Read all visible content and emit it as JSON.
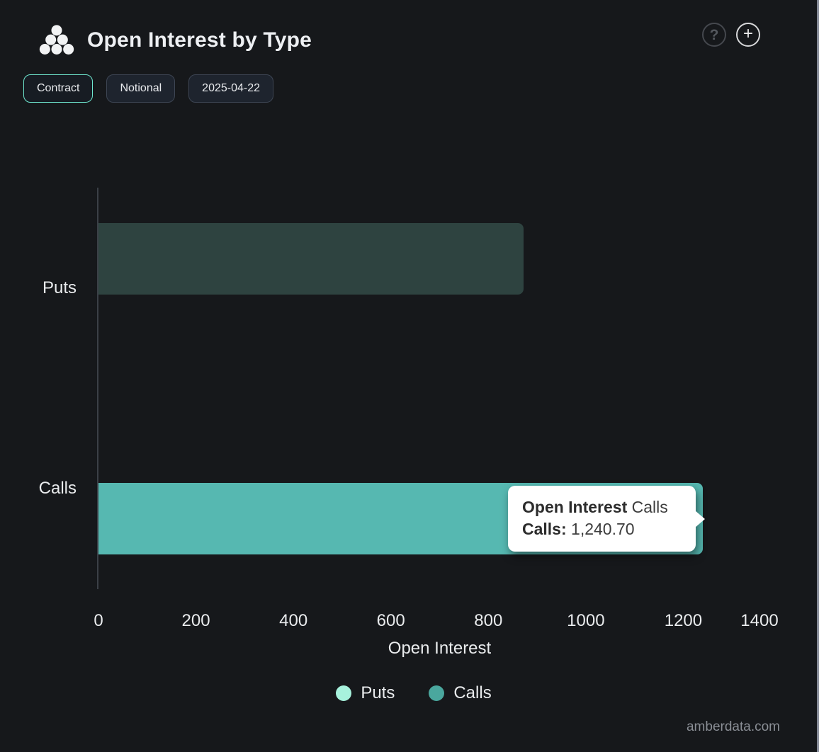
{
  "header": {
    "title": "Open Interest by Type",
    "help_glyph": "?",
    "add_glyph": "+"
  },
  "toolbar": {
    "buttons": [
      {
        "label": "Contract",
        "active": true
      },
      {
        "label": "Notional",
        "active": false
      },
      {
        "label": "2025-04-22",
        "active": false
      }
    ]
  },
  "chart_data": {
    "type": "bar",
    "orientation": "horizontal",
    "title": "Open Interest by Type",
    "categories": [
      "Puts",
      "Calls"
    ],
    "series": [
      {
        "name": "Puts",
        "value": 872,
        "bar_color": "#2e4340",
        "legend_color": "#a7f2dd"
      },
      {
        "name": "Calls",
        "value": 1240.7,
        "bar_color": "#56b8b1",
        "legend_color": "#4aa79e"
      }
    ],
    "xlabel": "Open Interest",
    "xticks": [
      "0",
      "200",
      "400",
      "600",
      "800",
      "1000",
      "1200",
      "1400"
    ],
    "xlim": [
      0,
      1400
    ],
    "grid": false,
    "legend_position": "bottom",
    "tooltip": {
      "series_bold": "Open Interest",
      "series_suffix": " Calls",
      "label_bold": "Calls:",
      "value": " 1,240.70"
    }
  },
  "footer": {
    "watermark": "amberdata.com"
  }
}
